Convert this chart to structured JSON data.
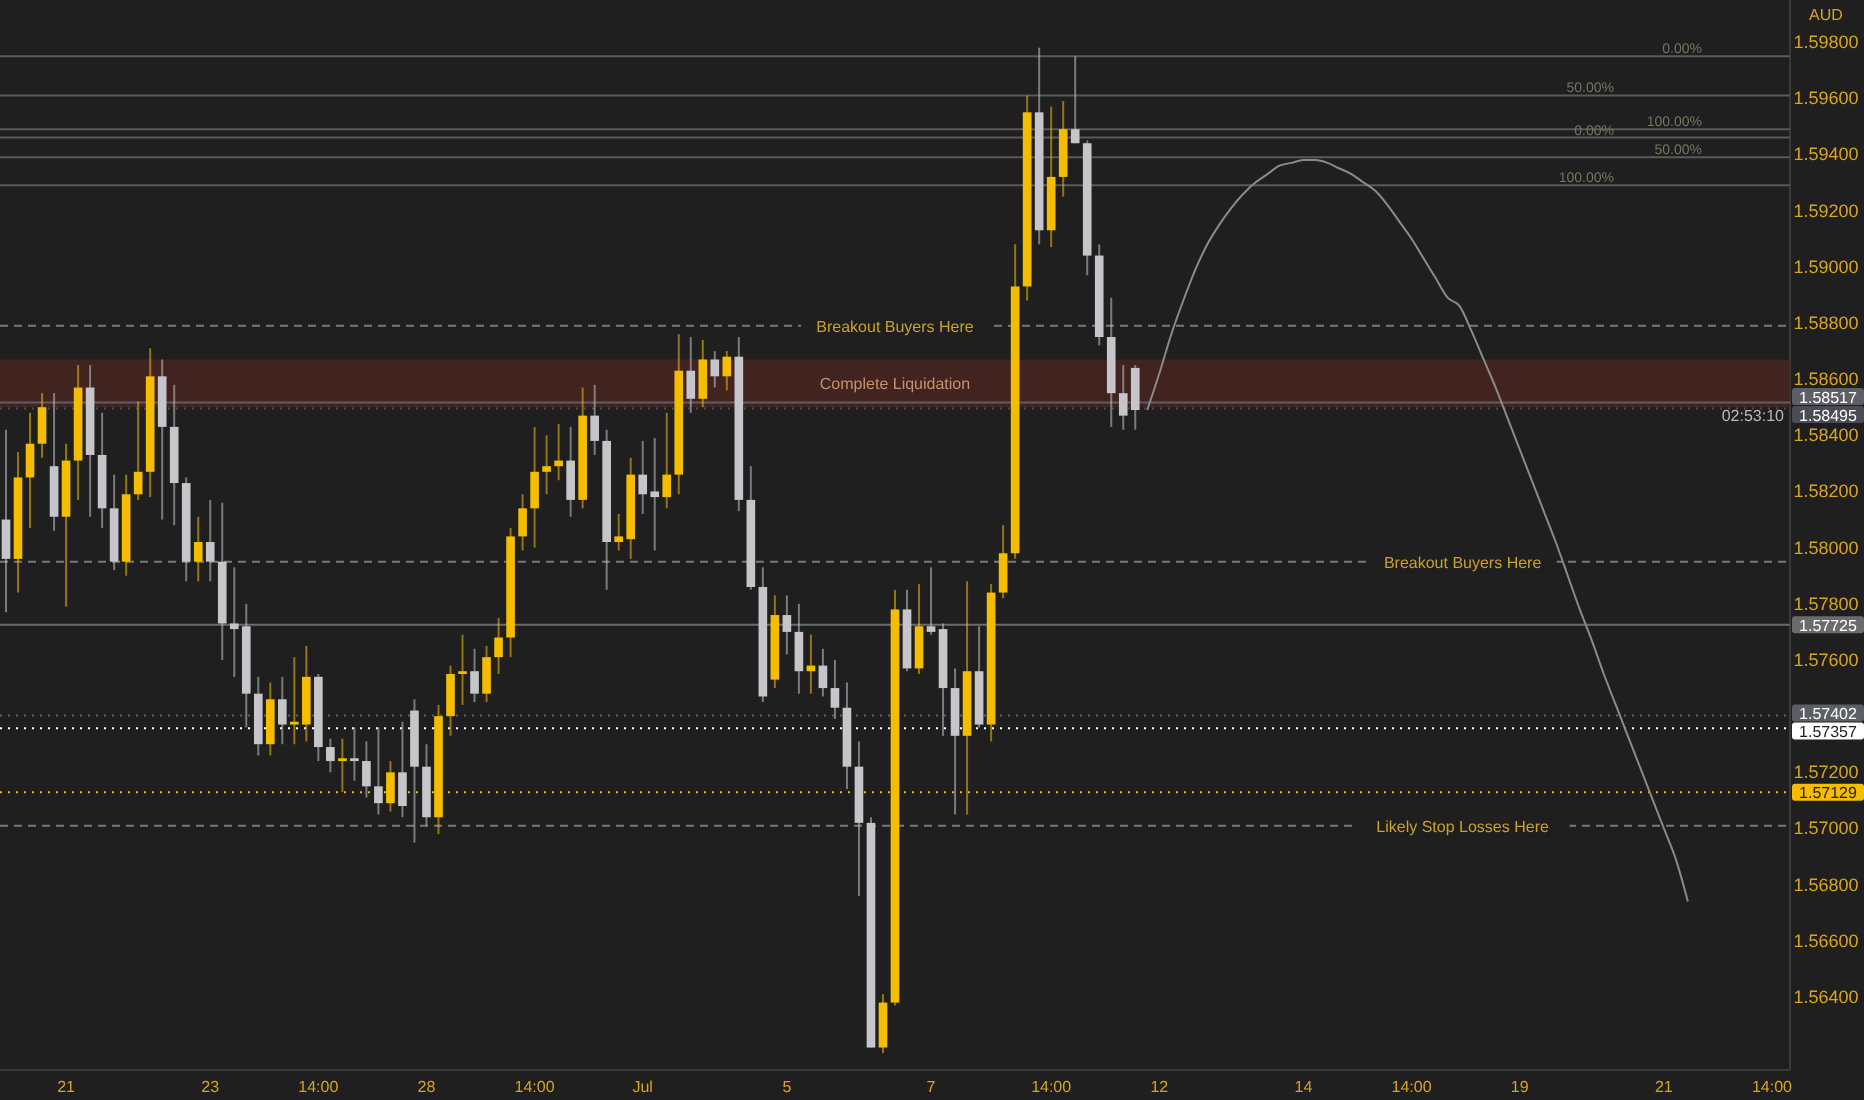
{
  "chart_data": {
    "type": "candlestick",
    "ylabel": "AUD",
    "categories": [
      null,
      null,
      null,
      null,
      null,
      "21",
      null,
      null,
      null,
      null,
      null,
      null,
      null,
      null,
      null,
      null,
      null,
      "23",
      null,
      null,
      null,
      null,
      null,
      null,
      null,
      null,
      "14:00",
      null,
      null,
      null,
      null,
      null,
      null,
      null,
      null,
      "28",
      null,
      null,
      null,
      null,
      null,
      null,
      null,
      null,
      "14:00",
      null,
      null,
      null,
      null,
      null,
      null,
      null,
      null,
      "Jul",
      null,
      null,
      null,
      null,
      null,
      null,
      null,
      null,
      null,
      null,
      null,
      "5",
      null,
      null,
      null,
      null,
      null,
      null,
      null,
      null,
      null,
      null,
      null,
      "7",
      null,
      null,
      null,
      null,
      null,
      null,
      null,
      null,
      null,
      "14:00",
      null,
      null,
      null,
      null,
      null,
      null,
      null,
      null,
      "12",
      null,
      null,
      null,
      null,
      null,
      null,
      null,
      null,
      null,
      null,
      null,
      "14",
      null,
      null,
      null,
      null,
      null,
      null,
      null,
      null,
      "14:00",
      null,
      null,
      null,
      null,
      null,
      null,
      null,
      null,
      "19",
      null,
      null,
      null,
      null,
      null,
      null,
      null,
      null,
      null,
      null,
      null,
      "21",
      null,
      null,
      null,
      null,
      null,
      null,
      null,
      null,
      "14:00",
      null
    ],
    "ohlc": [
      [
        1.581,
        1.5842,
        1.5777,
        1.5796
      ],
      [
        1.5796,
        1.5834,
        1.5784,
        1.5825
      ],
      [
        1.5825,
        1.5848,
        1.5807,
        1.5837
      ],
      [
        1.5837,
        1.5855,
        1.5832,
        1.585
      ],
      [
        1.5829,
        1.5855,
        1.5806,
        1.5811
      ],
      [
        1.5811,
        1.5837,
        1.5779,
        1.5831
      ],
      [
        1.5831,
        1.5865,
        1.5817,
        1.5857
      ],
      [
        1.5857,
        1.5865,
        1.5811,
        1.5833
      ],
      [
        1.5833,
        1.5848,
        1.5807,
        1.5814
      ],
      [
        1.5814,
        1.5826,
        1.5792,
        1.5795
      ],
      [
        1.5795,
        1.5826,
        1.579,
        1.5819
      ],
      [
        1.5819,
        1.5852,
        1.5817,
        1.5827
      ],
      [
        1.5827,
        1.5871,
        1.5818,
        1.5861
      ],
      [
        1.5861,
        1.5867,
        1.581,
        1.5843
      ],
      [
        1.5843,
        1.5858,
        1.5808,
        1.5823
      ],
      [
        1.5823,
        1.5825,
        1.5788,
        1.5795
      ],
      [
        1.5795,
        1.5811,
        1.5788,
        1.5802
      ],
      [
        1.5802,
        1.5817,
        1.5788,
        1.5795
      ],
      [
        1.5795,
        1.5816,
        1.576,
        1.5773
      ],
      [
        1.5773,
        1.5793,
        1.5754,
        1.5771
      ],
      [
        1.5772,
        1.578,
        1.5736,
        1.5748
      ],
      [
        1.5748,
        1.5754,
        1.5726,
        1.573
      ],
      [
        1.573,
        1.5752,
        1.5726,
        1.5746
      ],
      [
        1.5746,
        1.5754,
        1.573,
        1.5737
      ],
      [
        1.5737,
        1.5761,
        1.573,
        1.5738
      ],
      [
        1.5737,
        1.5765,
        1.5731,
        1.5754
      ],
      [
        1.5754,
        1.5755,
        1.5724,
        1.5729
      ],
      [
        1.5729,
        1.5732,
        1.572,
        1.5724
      ],
      [
        1.5724,
        1.5732,
        1.5713,
        1.5725
      ],
      [
        1.5725,
        1.5736,
        1.5717,
        1.5724
      ],
      [
        1.5724,
        1.5731,
        1.5711,
        1.5715
      ],
      [
        1.5715,
        1.5736,
        1.5705,
        1.5709
      ],
      [
        1.5709,
        1.5724,
        1.5706,
        1.572
      ],
      [
        1.572,
        1.5738,
        1.5704,
        1.5708
      ],
      [
        1.5742,
        1.5746,
        1.5695,
        1.5722
      ],
      [
        1.5722,
        1.573,
        1.5701,
        1.5704
      ],
      [
        1.5704,
        1.5744,
        1.5698,
        1.574
      ],
      [
        1.574,
        1.5758,
        1.5733,
        1.5755
      ],
      [
        1.5755,
        1.5769,
        1.5744,
        1.5756
      ],
      [
        1.5756,
        1.5764,
        1.5745,
        1.5748
      ],
      [
        1.5748,
        1.5765,
        1.5745,
        1.5761
      ],
      [
        1.5761,
        1.5775,
        1.5755,
        1.5768
      ],
      [
        1.5768,
        1.5807,
        1.5761,
        1.5804
      ],
      [
        1.5804,
        1.5819,
        1.5799,
        1.5814
      ],
      [
        1.5814,
        1.5843,
        1.58,
        1.5827
      ],
      [
        1.5827,
        1.584,
        1.5819,
        1.5829
      ],
      [
        1.5829,
        1.5844,
        1.5824,
        1.5831
      ],
      [
        1.5831,
        1.5843,
        1.5811,
        1.5817
      ],
      [
        1.5817,
        1.5857,
        1.5814,
        1.5847
      ],
      [
        1.5847,
        1.5858,
        1.5833,
        1.5838
      ],
      [
        1.5838,
        1.5842,
        1.5785,
        1.5802
      ],
      [
        1.5802,
        1.5812,
        1.5799,
        1.5804
      ],
      [
        1.5803,
        1.5832,
        1.5796,
        1.5826
      ],
      [
        1.5826,
        1.5838,
        1.5812,
        1.5819
      ],
      [
        1.582,
        1.5839,
        1.5799,
        1.5818
      ],
      [
        1.5818,
        1.5848,
        1.5814,
        1.5826
      ],
      [
        1.5826,
        1.5876,
        1.5819,
        1.5863
      ],
      [
        1.5863,
        1.5875,
        1.5848,
        1.5853
      ],
      [
        1.5853,
        1.5874,
        1.585,
        1.5867
      ],
      [
        1.5867,
        1.587,
        1.5857,
        1.5861
      ],
      [
        1.5861,
        1.587,
        1.5856,
        1.5868
      ],
      [
        1.5868,
        1.5875,
        1.5813,
        1.5817
      ],
      [
        1.5817,
        1.5829,
        1.5785,
        1.5786
      ],
      [
        1.5786,
        1.5793,
        1.5745,
        1.5747
      ],
      [
        1.5753,
        1.5783,
        1.575,
        1.5776
      ],
      [
        1.5776,
        1.5783,
        1.5762,
        1.577
      ],
      [
        1.577,
        1.578,
        1.5748,
        1.5756
      ],
      [
        1.5756,
        1.5769,
        1.5748,
        1.5758
      ],
      [
        1.5758,
        1.5764,
        1.5747,
        1.575
      ],
      [
        1.575,
        1.576,
        1.5739,
        1.5743
      ],
      [
        1.5743,
        1.5752,
        1.5714,
        1.5722
      ],
      [
        1.5722,
        1.5731,
        1.5676,
        1.5702
      ],
      [
        1.5702,
        1.5704,
        1.5622,
        1.5622
      ],
      [
        1.5622,
        1.5641,
        1.562,
        1.5638
      ],
      [
        1.5638,
        1.5785,
        1.5637,
        1.5778
      ],
      [
        1.5778,
        1.5785,
        1.5756,
        1.5757
      ],
      [
        1.5757,
        1.5787,
        1.5755,
        1.5772
      ],
      [
        1.5772,
        1.5793,
        1.5769,
        1.577
      ],
      [
        1.5771,
        1.5773,
        1.5733,
        1.575
      ],
      [
        1.575,
        1.5757,
        1.5705,
        1.5733
      ],
      [
        1.5733,
        1.5788,
        1.5705,
        1.5756
      ],
      [
        1.5756,
        1.5772,
        1.5736,
        1.5737
      ],
      [
        1.5737,
        1.5787,
        1.5731,
        1.5784
      ],
      [
        1.5784,
        1.5808,
        1.5782,
        1.5798
      ],
      [
        1.5798,
        1.5908,
        1.5796,
        1.5893
      ],
      [
        1.5893,
        1.5961,
        1.5888,
        1.5955
      ],
      [
        1.5955,
        1.5978,
        1.5908,
        1.5913
      ],
      [
        1.5913,
        1.5957,
        1.5907,
        1.5932
      ],
      [
        1.5932,
        1.5959,
        1.5925,
        1.5949
      ],
      [
        1.5949,
        1.5975,
        1.5944,
        1.5944
      ],
      [
        1.5944,
        1.5945,
        1.5897,
        1.5904
      ],
      [
        1.5904,
        1.5908,
        1.5872,
        1.5875
      ],
      [
        1.5875,
        1.5889,
        1.5843,
        1.5855
      ],
      [
        1.5855,
        1.5865,
        1.5842,
        1.5847
      ],
      [
        1.5864,
        1.5865,
        1.5842,
        1.5849
      ],
      null,
      null,
      null,
      null,
      null,
      null,
      null,
      null,
      null,
      null,
      null,
      null,
      null,
      null,
      null,
      null,
      null,
      null,
      null,
      null,
      null,
      null,
      null,
      null,
      null,
      null,
      null,
      null,
      null,
      null,
      null,
      null,
      null,
      null,
      null,
      null,
      null,
      null,
      null,
      null,
      null,
      null,
      null,
      null,
      null,
      null,
      null,
      null,
      null,
      null,
      null,
      null,
      null,
      null
    ],
    "colors": [
      "#c6c6ca",
      "#f5bd00",
      "#f5bd00",
      "#f5bd00",
      "#c6c6ca",
      "#f5bd00",
      "#f5bd00",
      "#c6c6ca",
      "#c6c6ca",
      "#c6c6ca",
      "#f5bd00",
      "#f5bd00",
      "#f5bd00",
      "#c6c6ca",
      "#c6c6ca",
      "#c6c6ca",
      "#f5bd00",
      "#c6c6ca",
      "#c6c6ca",
      "#c6c6ca",
      "#c6c6ca",
      "#c6c6ca",
      "#f5bd00",
      "#c6c6ca",
      "#f5bd00",
      "#f5bd00",
      "#c6c6ca",
      "#c6c6ca",
      "#f5bd00",
      "#c6c6ca",
      "#c6c6ca",
      "#c6c6ca",
      "#f5bd00",
      "#c6c6ca",
      "#c6c6ca",
      "#c6c6ca",
      "#f5bd00",
      "#f5bd00",
      "#f5bd00",
      "#c6c6ca",
      "#f5bd00",
      "#f5bd00",
      "#f5bd00",
      "#f5bd00",
      "#f5bd00",
      "#f5bd00",
      "#f5bd00",
      "#c6c6ca",
      "#f5bd00",
      "#c6c6ca",
      "#c6c6ca",
      "#f5bd00",
      "#f5bd00",
      "#c6c6ca",
      "#c6c6ca",
      "#f5bd00",
      "#f5bd00",
      "#c6c6ca",
      "#f5bd00",
      "#c6c6ca",
      "#f5bd00",
      "#c6c6ca",
      "#c6c6ca",
      "#c6c6ca",
      "#f5bd00",
      "#c6c6ca",
      "#c6c6ca",
      "#f5bd00",
      "#c6c6ca",
      "#c6c6ca",
      "#c6c6ca",
      "#c6c6ca",
      "#c6c6ca",
      "#f5bd00",
      "#f5bd00",
      "#c6c6ca",
      "#f5bd00",
      "#c6c6ca",
      "#c6c6ca",
      "#c6c6ca",
      "#f5bd00",
      "#c6c6ca",
      "#f5bd00",
      "#f5bd00",
      "#f5bd00",
      "#f5bd00",
      "#c6c6ca",
      "#f5bd00",
      "#f5bd00",
      "#c6c6ca",
      "#c6c6ca",
      "#c6c6ca",
      "#c6c6ca",
      "#c6c6ca",
      "#c6c6ca",
      null,
      null,
      null,
      null,
      null,
      null,
      null,
      null,
      null,
      null,
      null,
      null,
      null,
      null,
      null,
      null,
      null,
      null,
      null,
      null,
      null,
      null,
      null,
      null,
      null,
      null,
      null,
      null,
      null,
      null,
      null,
      null,
      null,
      null,
      null,
      null,
      null,
      null,
      null,
      null,
      null,
      null,
      null,
      null,
      null,
      null,
      null,
      null,
      null,
      null,
      null,
      null,
      null,
      null
    ],
    "series": [
      {
        "type": "line",
        "color": "#8a8a8a",
        "values": [
          null,
          null,
          null,
          null,
          null,
          null,
          null,
          null,
          null,
          null,
          null,
          null,
          null,
          null,
          null,
          null,
          null,
          null,
          null,
          null,
          null,
          null,
          null,
          null,
          null,
          null,
          null,
          null,
          null,
          null,
          null,
          null,
          null,
          null,
          null,
          null,
          null,
          null,
          null,
          null,
          null,
          null,
          null,
          null,
          null,
          null,
          null,
          null,
          null,
          null,
          null,
          null,
          null,
          null,
          null,
          null,
          null,
          null,
          null,
          null,
          null,
          null,
          null,
          null,
          null,
          null,
          null,
          null,
          null,
          null,
          null,
          null,
          null,
          null,
          null,
          null,
          null,
          null,
          null,
          null,
          null,
          null,
          null,
          null,
          null,
          null,
          null,
          null,
          null,
          null,
          null,
          null,
          null,
          null,
          null,
          1.5849,
          1.5862,
          1.5876,
          1.5888,
          1.5899,
          1.5908,
          1.5915,
          1.5921,
          1.5926,
          1.593,
          1.5933,
          1.5936,
          1.5937,
          1.5938,
          1.5938,
          1.5937,
          1.5935,
          1.5933,
          1.593,
          1.5927,
          1.5922,
          1.5916,
          1.591,
          1.5903,
          1.5896,
          1.5889,
          1.5886,
          1.5877,
          1.5867,
          1.5857,
          1.5846,
          1.5835,
          1.5824,
          1.5813,
          1.5802,
          1.579,
          1.5778,
          1.5767,
          1.5755,
          1.5744,
          1.5733,
          1.5722,
          1.5711,
          1.57,
          1.5689,
          1.5674,
          null,
          null,
          null,
          null,
          null,
          null,
          null,
          null
        ]
      }
    ],
    "ylim": [
      1.5614,
      1.5995
    ],
    "yticks": [
      {
        "value": 1.564,
        "label": "1.56400"
      },
      {
        "value": 1.566,
        "label": "1.56600"
      },
      {
        "value": 1.568,
        "label": "1.56800"
      },
      {
        "value": 1.57,
        "label": "1.57000"
      },
      {
        "value": 1.572,
        "label": "1.57200"
      },
      {
        "value": 1.576,
        "label": "1.57600"
      },
      {
        "value": 1.578,
        "label": "1.57800"
      },
      {
        "value": 1.58,
        "label": "1.58000"
      },
      {
        "value": 1.582,
        "label": "1.58200"
      },
      {
        "value": 1.584,
        "label": "1.58400"
      },
      {
        "value": 1.586,
        "label": "1.58600"
      },
      {
        "value": 1.588,
        "label": "1.58800"
      },
      {
        "value": 1.59,
        "label": "1.59000"
      },
      {
        "value": 1.592,
        "label": "1.59200"
      },
      {
        "value": 1.594,
        "label": "1.59400"
      },
      {
        "value": 1.596,
        "label": "1.59600"
      },
      {
        "value": 1.598,
        "label": "1.59800"
      }
    ],
    "bands": [
      {
        "axis": "y",
        "from": 1.585,
        "to": 1.5867,
        "label": "Complete Liquidation",
        "color": "#4a2420"
      }
    ],
    "ref_lines": [
      {
        "axis": "y",
        "value": 1.58517,
        "label": "1.58517",
        "color": "#5d5e66",
        "line_style": "solid"
      },
      {
        "axis": "y",
        "value": 1.58495,
        "label": "1.58495",
        "color": "#4a4b55",
        "line_style": "dotted"
      },
      {
        "axis": "y",
        "value": 1.57725,
        "label": "1.57725",
        "color": "#6b6b6e",
        "line_style": "solid"
      },
      {
        "axis": "y",
        "value": 1.57402,
        "label": "1.57402",
        "color": "#5d5e66",
        "line_style": "dotted"
      },
      {
        "axis": "y",
        "value": 1.57357,
        "label": "1.57357",
        "color": "#ffffff",
        "line_style": "dotted"
      },
      {
        "axis": "y",
        "value": 1.57129,
        "label": "1.57129",
        "color": "#f5bd00",
        "line_style": "dotted"
      },
      {
        "axis": "y",
        "value": 1.5879,
        "color": "#7a7a7a",
        "line_style": "dashed"
      },
      {
        "axis": "y",
        "value": 1.5795,
        "color": "#7a7a7a",
        "line_style": "dashed"
      },
      {
        "axis": "y",
        "value": 1.5701,
        "color": "#7a7a7a",
        "line_style": "dashed"
      },
      {
        "axis": "y",
        "value": 1.5975,
        "color": "#5a5a5a",
        "line_style": "solid"
      },
      {
        "axis": "y",
        "value": 1.5961,
        "color": "#5a5a5a",
        "line_style": "solid"
      },
      {
        "axis": "y",
        "value": 1.5949,
        "color": "#5a5a5a",
        "line_style": "solid"
      },
      {
        "axis": "y",
        "value": 1.5946,
        "color": "#5a5a5a",
        "line_style": "solid"
      },
      {
        "axis": "y",
        "value": 1.5939,
        "color": "#5a5a5a",
        "line_style": "solid"
      },
      {
        "axis": "y",
        "value": 1.5929,
        "color": "#5a5a5a",
        "line_style": "solid"
      }
    ],
    "annotations": [
      {
        "text": "Breakout Buyers Here",
        "y": 1.5879
      },
      {
        "text": "Breakout Buyers Here",
        "y": 1.5795
      },
      {
        "text": "Likely Stop Losses Here",
        "y": 1.5701
      },
      {
        "text": "0.00%",
        "y": 1.5975
      },
      {
        "text": "50.00%",
        "y": 1.5961
      },
      {
        "text": "100.00%",
        "y": 1.5949
      },
      {
        "text": "0.00%",
        "y": 1.5946
      },
      {
        "text": "50.00%",
        "y": 1.5939
      },
      {
        "text": "100.00%",
        "y": 1.5929
      },
      "02:53:10"
    ]
  }
}
